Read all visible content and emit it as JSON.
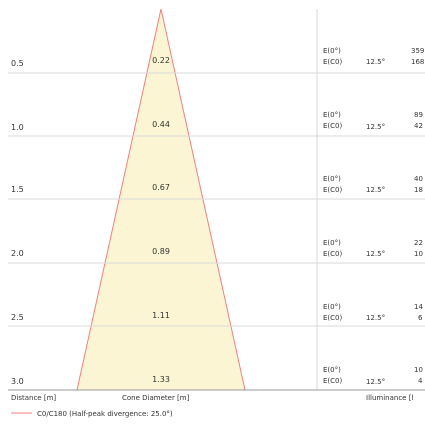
{
  "distance_label": "Distance [m]",
  "cone_label": "Cone Diameter [m]",
  "illuminance_label": "Illuminance [l",
  "legend_label": "C0/C180 (Half-peak divergence: 25.0°)",
  "rows": [
    {
      "distance": "0.5",
      "diameter": "0.22",
      "e0_label": "E(0°)",
      "ec0_label": "E(C0)",
      "angle": "12.5°",
      "e0_value": "359",
      "ec0_value": "168"
    },
    {
      "distance": "1.0",
      "diameter": "0.44",
      "e0_label": "E(0°)",
      "ec0_label": "E(C0)",
      "angle": "12.5°",
      "e0_value": "89",
      "ec0_value": "42"
    },
    {
      "distance": "1.5",
      "diameter": "0.67",
      "e0_label": "E(0°)",
      "ec0_label": "E(C0)",
      "angle": "12.5°",
      "e0_value": "40",
      "ec0_value": "18"
    },
    {
      "distance": "2.0",
      "diameter": "0.89",
      "e0_label": "E(0°)",
      "ec0_label": "E(C0)",
      "angle": "12.5°",
      "e0_value": "22",
      "ec0_value": "10"
    },
    {
      "distance": "2.5",
      "diameter": "1.11",
      "e0_label": "E(0°)",
      "ec0_label": "E(C0)",
      "angle": "12.5°",
      "e0_value": "14",
      "ec0_value": "6"
    },
    {
      "distance": "3.0",
      "diameter": "1.33",
      "e0_label": "E(0°)",
      "ec0_label": "E(C0)",
      "angle": "12.5°",
      "e0_value": "10",
      "ec0_value": "4"
    }
  ],
  "colors": {
    "cone_fill": "#fbf5d3",
    "cone_stroke": "#f08080",
    "grid": "#d9d9d9",
    "legend_line": "#f08080"
  }
}
